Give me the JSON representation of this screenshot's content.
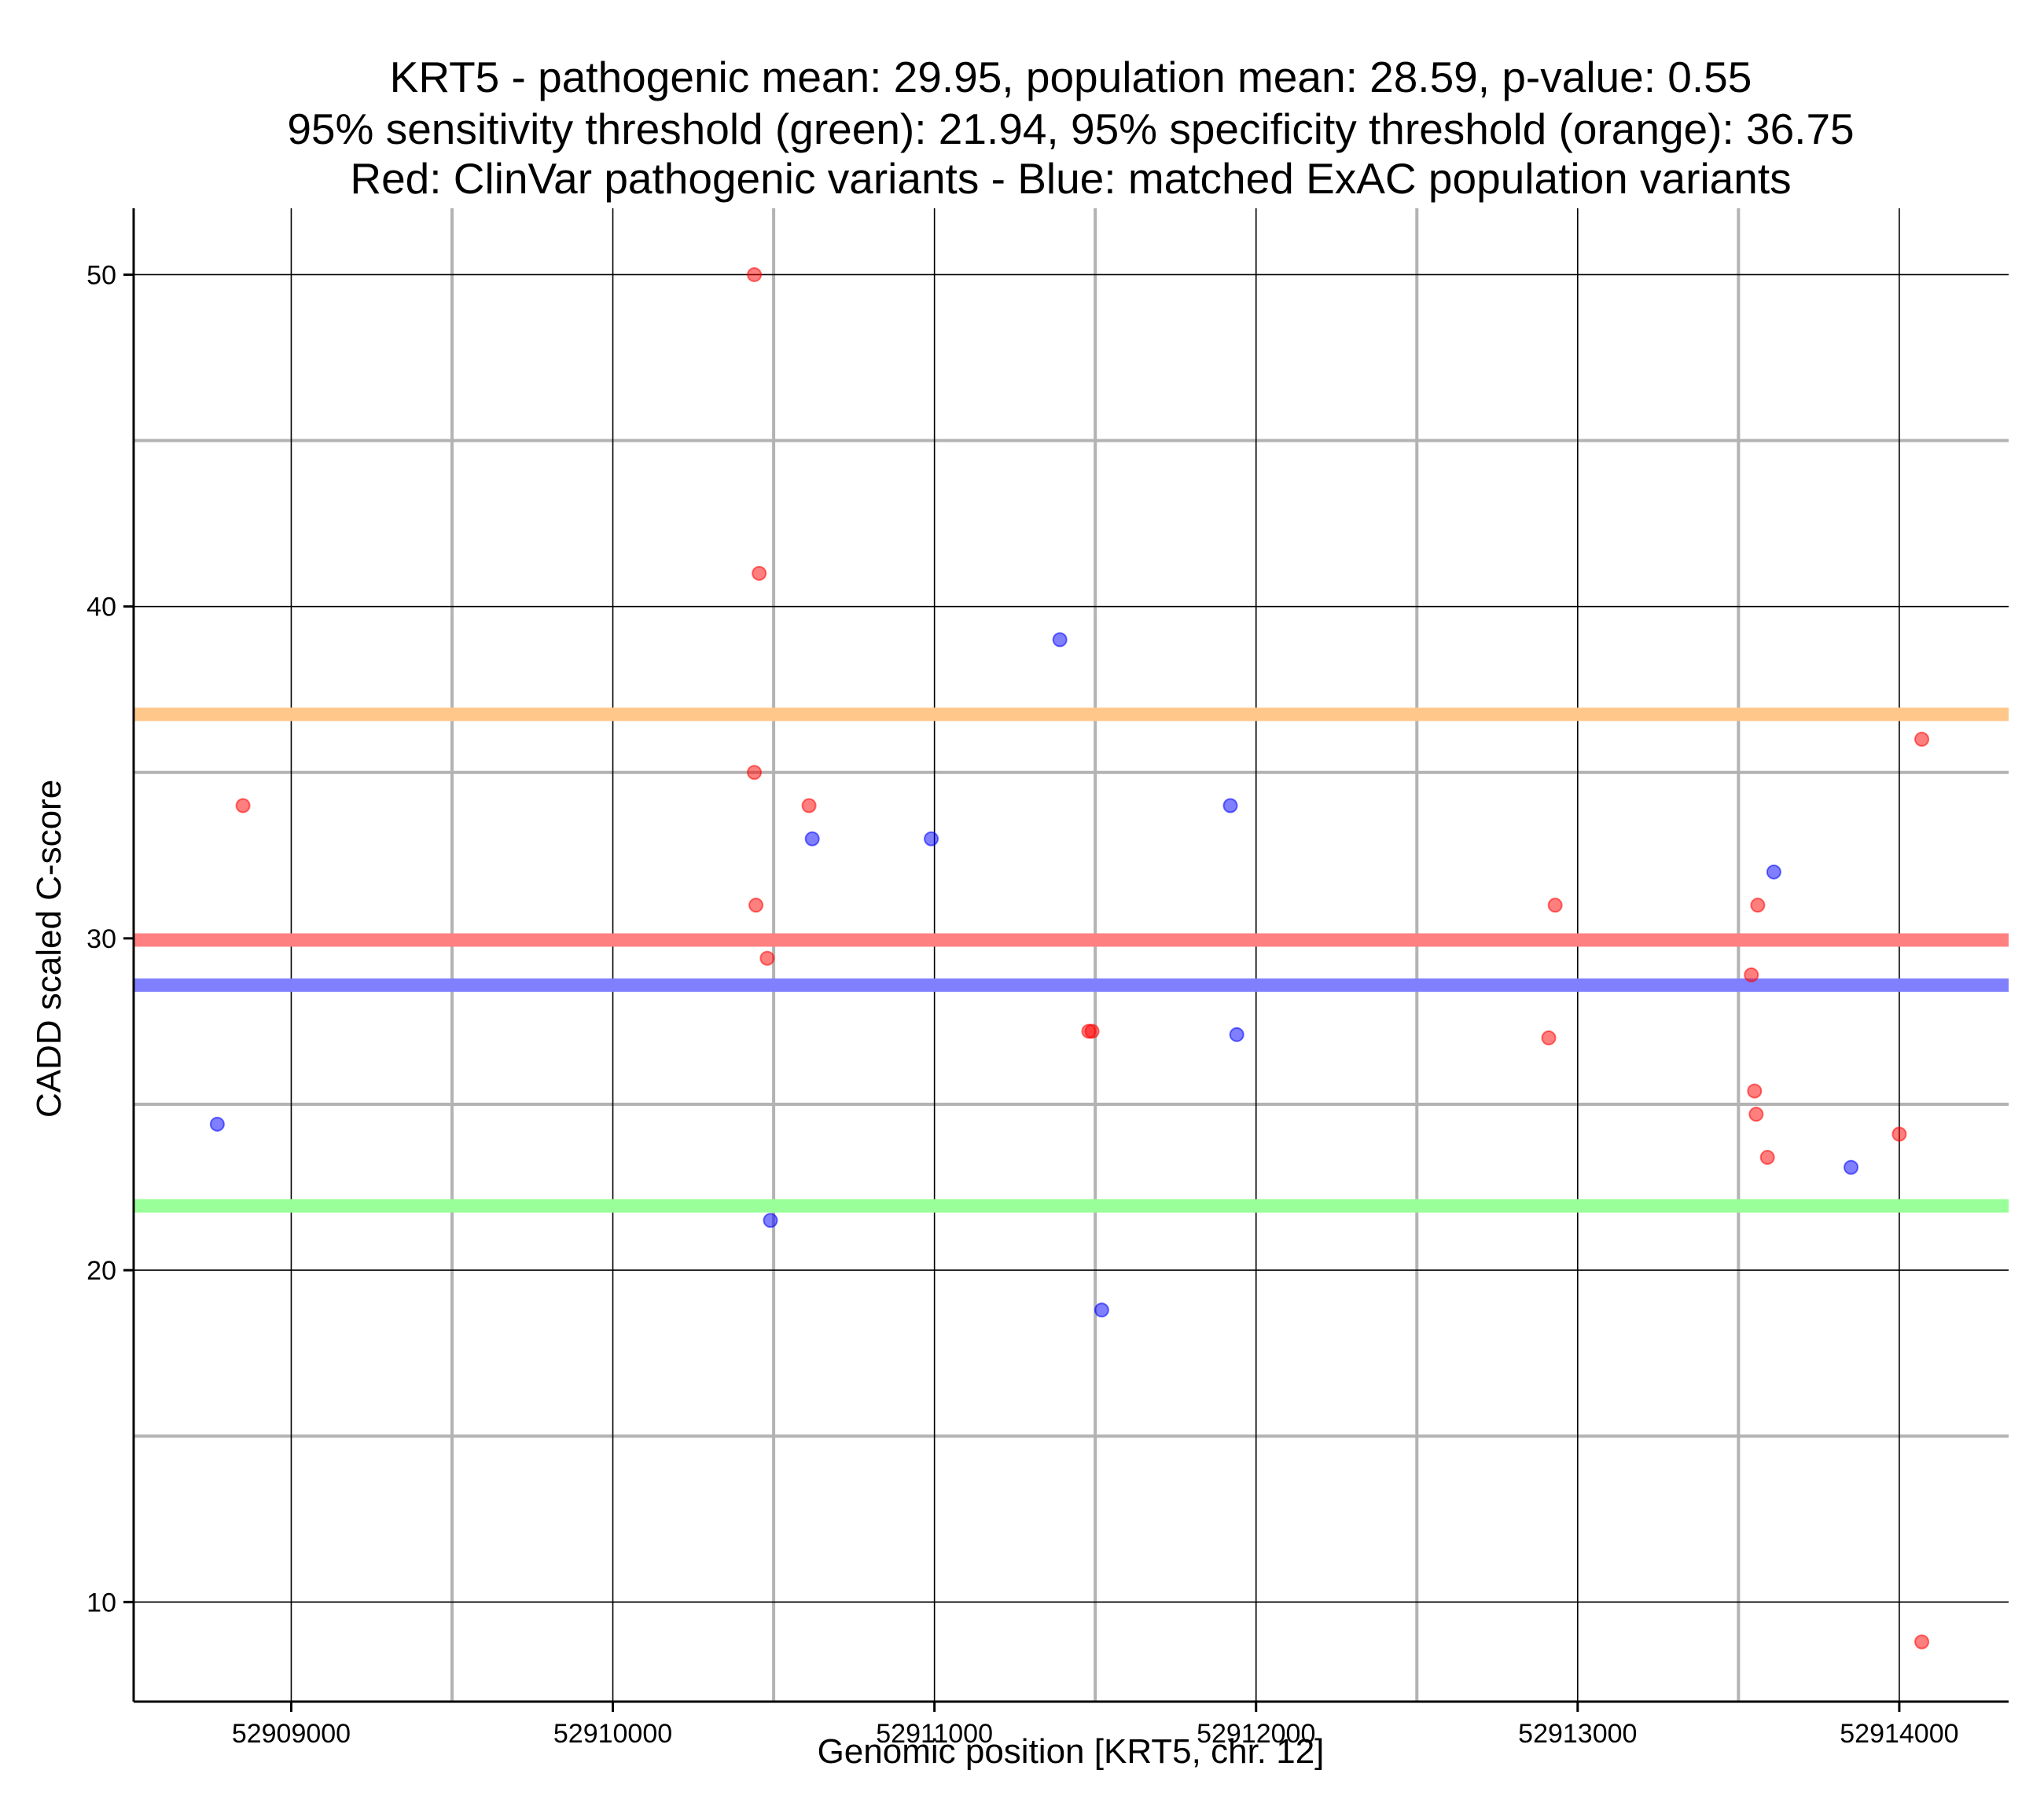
{
  "chart_data": {
    "type": "scatter",
    "title_lines": [
      "KRT5 - pathogenic mean: 29.95, population mean: 28.59, p-value: 0.55",
      "95% sensitivity threshold (green): 21.94, 95% specificity threshold (orange): 36.75",
      "Red: ClinVar pathogenic variants - Blue: matched ExAC population variants"
    ],
    "xlabel": "Genomic position [KRT5, chr. 12]",
    "ylabel": "CADD scaled C-score",
    "xlim": [
      52908510,
      52914340
    ],
    "ylim": [
      7.0,
      52.0
    ],
    "x_major_ticks": [
      52909000,
      52910000,
      52911000,
      52912000,
      52913000,
      52914000
    ],
    "x_tick_labels": [
      "52909000",
      "52910000",
      "52911000",
      "52912000",
      "52913000",
      "52914000"
    ],
    "x_minor_ticks": [
      52909500,
      52910500,
      52911500,
      52912500,
      52913500
    ],
    "y_major_ticks": [
      10,
      20,
      30,
      40,
      50
    ],
    "y_tick_labels": [
      "10",
      "20",
      "30",
      "40",
      "50"
    ],
    "y_minor_ticks": [
      15,
      25,
      35,
      45
    ],
    "grid": true,
    "reference_lines": [
      {
        "name": "specificity-threshold",
        "value": 36.75,
        "color": "#FFC88A"
      },
      {
        "name": "pathogenic-mean",
        "value": 29.95,
        "color": "#FF8080"
      },
      {
        "name": "population-mean",
        "value": 28.59,
        "color": "#8080FF"
      },
      {
        "name": "sensitivity-threshold",
        "value": 21.94,
        "color": "#99FF99"
      }
    ],
    "series": [
      {
        "name": "ClinVar pathogenic variants",
        "color": "#FF0000",
        "points": [
          {
            "x": 52908850,
            "y": 34.0
          },
          {
            "x": 52910440,
            "y": 50.0
          },
          {
            "x": 52910455,
            "y": 41.0
          },
          {
            "x": 52910440,
            "y": 35.0
          },
          {
            "x": 52910445,
            "y": 31.0
          },
          {
            "x": 52910480,
            "y": 29.4
          },
          {
            "x": 52910610,
            "y": 34.0
          },
          {
            "x": 52911480,
            "y": 27.2
          },
          {
            "x": 52911490,
            "y": 27.2
          },
          {
            "x": 52912930,
            "y": 31.0
          },
          {
            "x": 52912910,
            "y": 27.0
          },
          {
            "x": 52913540,
            "y": 28.9
          },
          {
            "x": 52913560,
            "y": 31.0
          },
          {
            "x": 52913550,
            "y": 25.4
          },
          {
            "x": 52913555,
            "y": 24.7
          },
          {
            "x": 52913590,
            "y": 23.4
          },
          {
            "x": 52914000,
            "y": 24.1
          },
          {
            "x": 52914070,
            "y": 36.0
          },
          {
            "x": 52914070,
            "y": 8.8
          }
        ]
      },
      {
        "name": "matched ExAC population variants",
        "color": "#0000FF",
        "points": [
          {
            "x": 52908770,
            "y": 24.4
          },
          {
            "x": 52910490,
            "y": 21.5
          },
          {
            "x": 52910620,
            "y": 33.0
          },
          {
            "x": 52910990,
            "y": 33.0
          },
          {
            "x": 52911390,
            "y": 39.0
          },
          {
            "x": 52911520,
            "y": 18.8
          },
          {
            "x": 52911920,
            "y": 34.0
          },
          {
            "x": 52911940,
            "y": 27.1
          },
          {
            "x": 52913610,
            "y": 32.0
          },
          {
            "x": 52913850,
            "y": 23.1
          }
        ]
      }
    ]
  }
}
